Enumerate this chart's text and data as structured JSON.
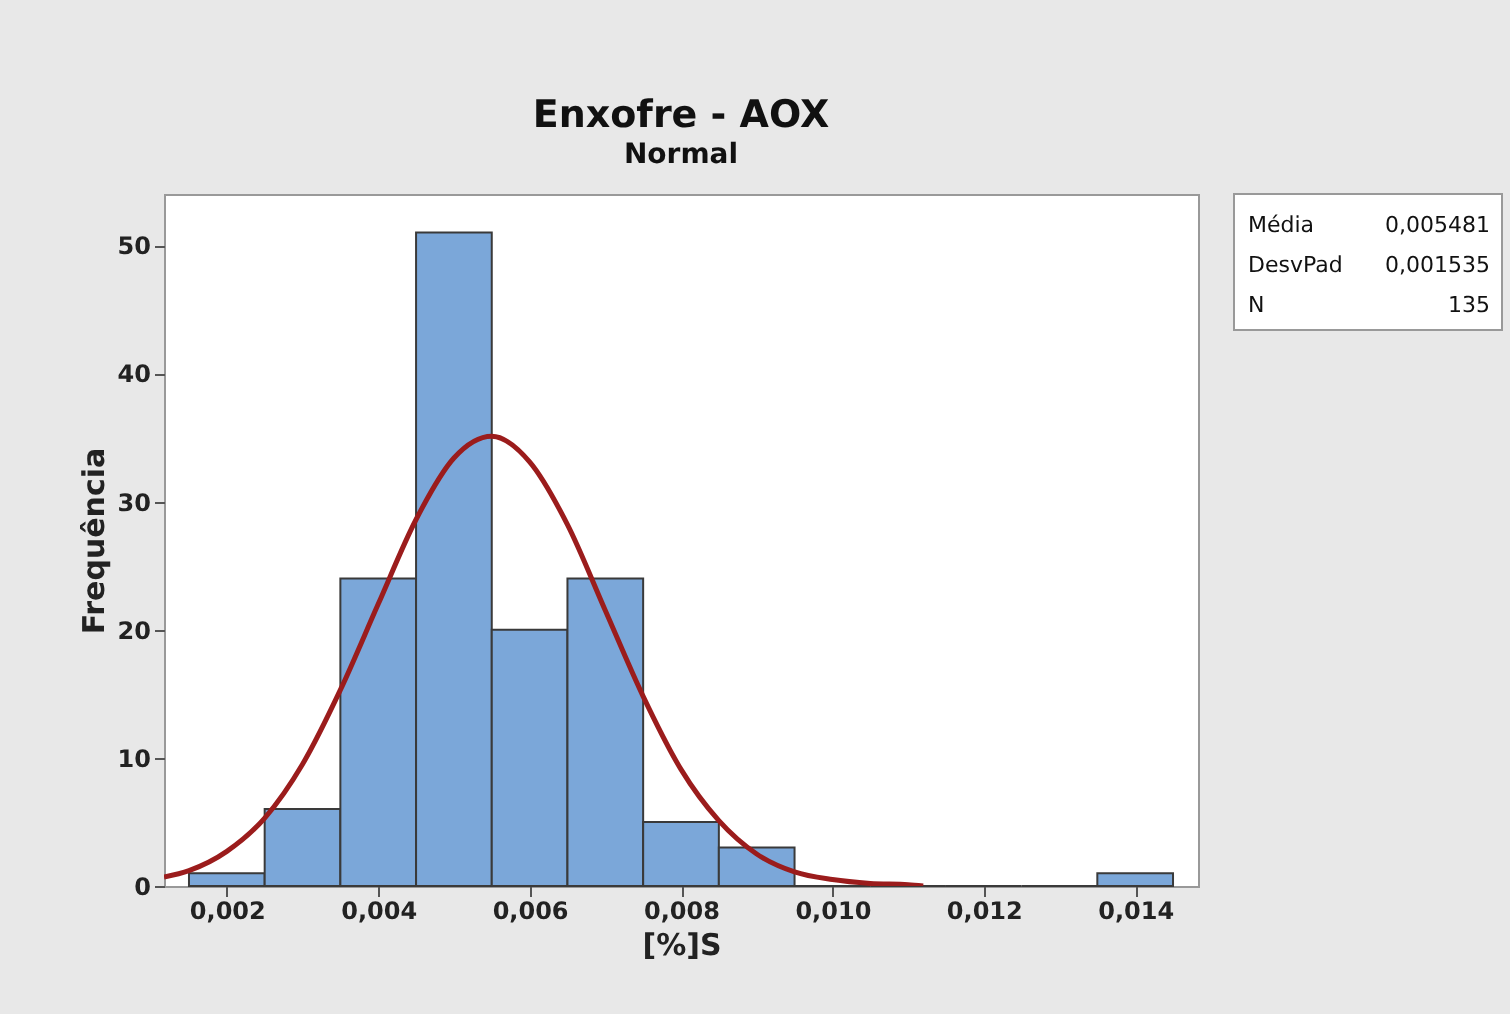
{
  "chart_data": {
    "type": "histogram",
    "title": "Enxofre - AOX",
    "subtitle": "Normal",
    "xlabel": "[%]S",
    "ylabel": "Frequência",
    "bins": [
      0.0015,
      0.0025,
      0.0035,
      0.0045,
      0.0055,
      0.0065,
      0.0075,
      0.0085,
      0.0095,
      0.0105,
      0.0115,
      0.0125,
      0.0135,
      0.0145
    ],
    "series": [
      {
        "color": "#7ba7d9",
        "values": [
          1,
          6,
          24,
          51,
          20,
          24,
          5,
          3,
          0,
          0,
          0,
          0,
          1
        ]
      },
      {
        "type": "line",
        "color": "#9b1c1c",
        "x": [
          0.00117,
          0.0015,
          0.002,
          0.0025,
          0.003,
          0.0035,
          0.004,
          0.0045,
          0.005,
          0.0055,
          0.006,
          0.0065,
          0.007,
          0.0075,
          0.008,
          0.0085,
          0.009,
          0.0095,
          0.01,
          0.0105,
          0.011,
          0.0112
        ],
        "values": [
          0.7,
          1.2,
          2.7,
          5.3,
          9.5,
          15.3,
          22.0,
          28.6,
          33.4,
          35.1,
          33.1,
          28.2,
          21.5,
          14.8,
          9.1,
          5.1,
          2.5,
          1.1,
          0.5,
          0.2,
          0.1,
          0.0
        ]
      }
    ],
    "xlim": [
      0.00117,
      0.01483
    ],
    "ylim": [
      0,
      54
    ],
    "xticks": [
      {
        "value": 0.002,
        "label": "0,002"
      },
      {
        "value": 0.004,
        "label": "0,004"
      },
      {
        "value": 0.006,
        "label": "0,006"
      },
      {
        "value": 0.008,
        "label": "0,008"
      },
      {
        "value": 0.01,
        "label": "0,010"
      },
      {
        "value": 0.012,
        "label": "0,012"
      },
      {
        "value": 0.014,
        "label": "0,014"
      }
    ],
    "yticks": [
      0,
      10,
      20,
      30,
      40,
      50
    ],
    "grid": false,
    "marker": "none",
    "line_style": "solid",
    "annotations": [
      "Média 0,005481",
      "DesvPad 0,001535",
      "N 135"
    ]
  }
}
